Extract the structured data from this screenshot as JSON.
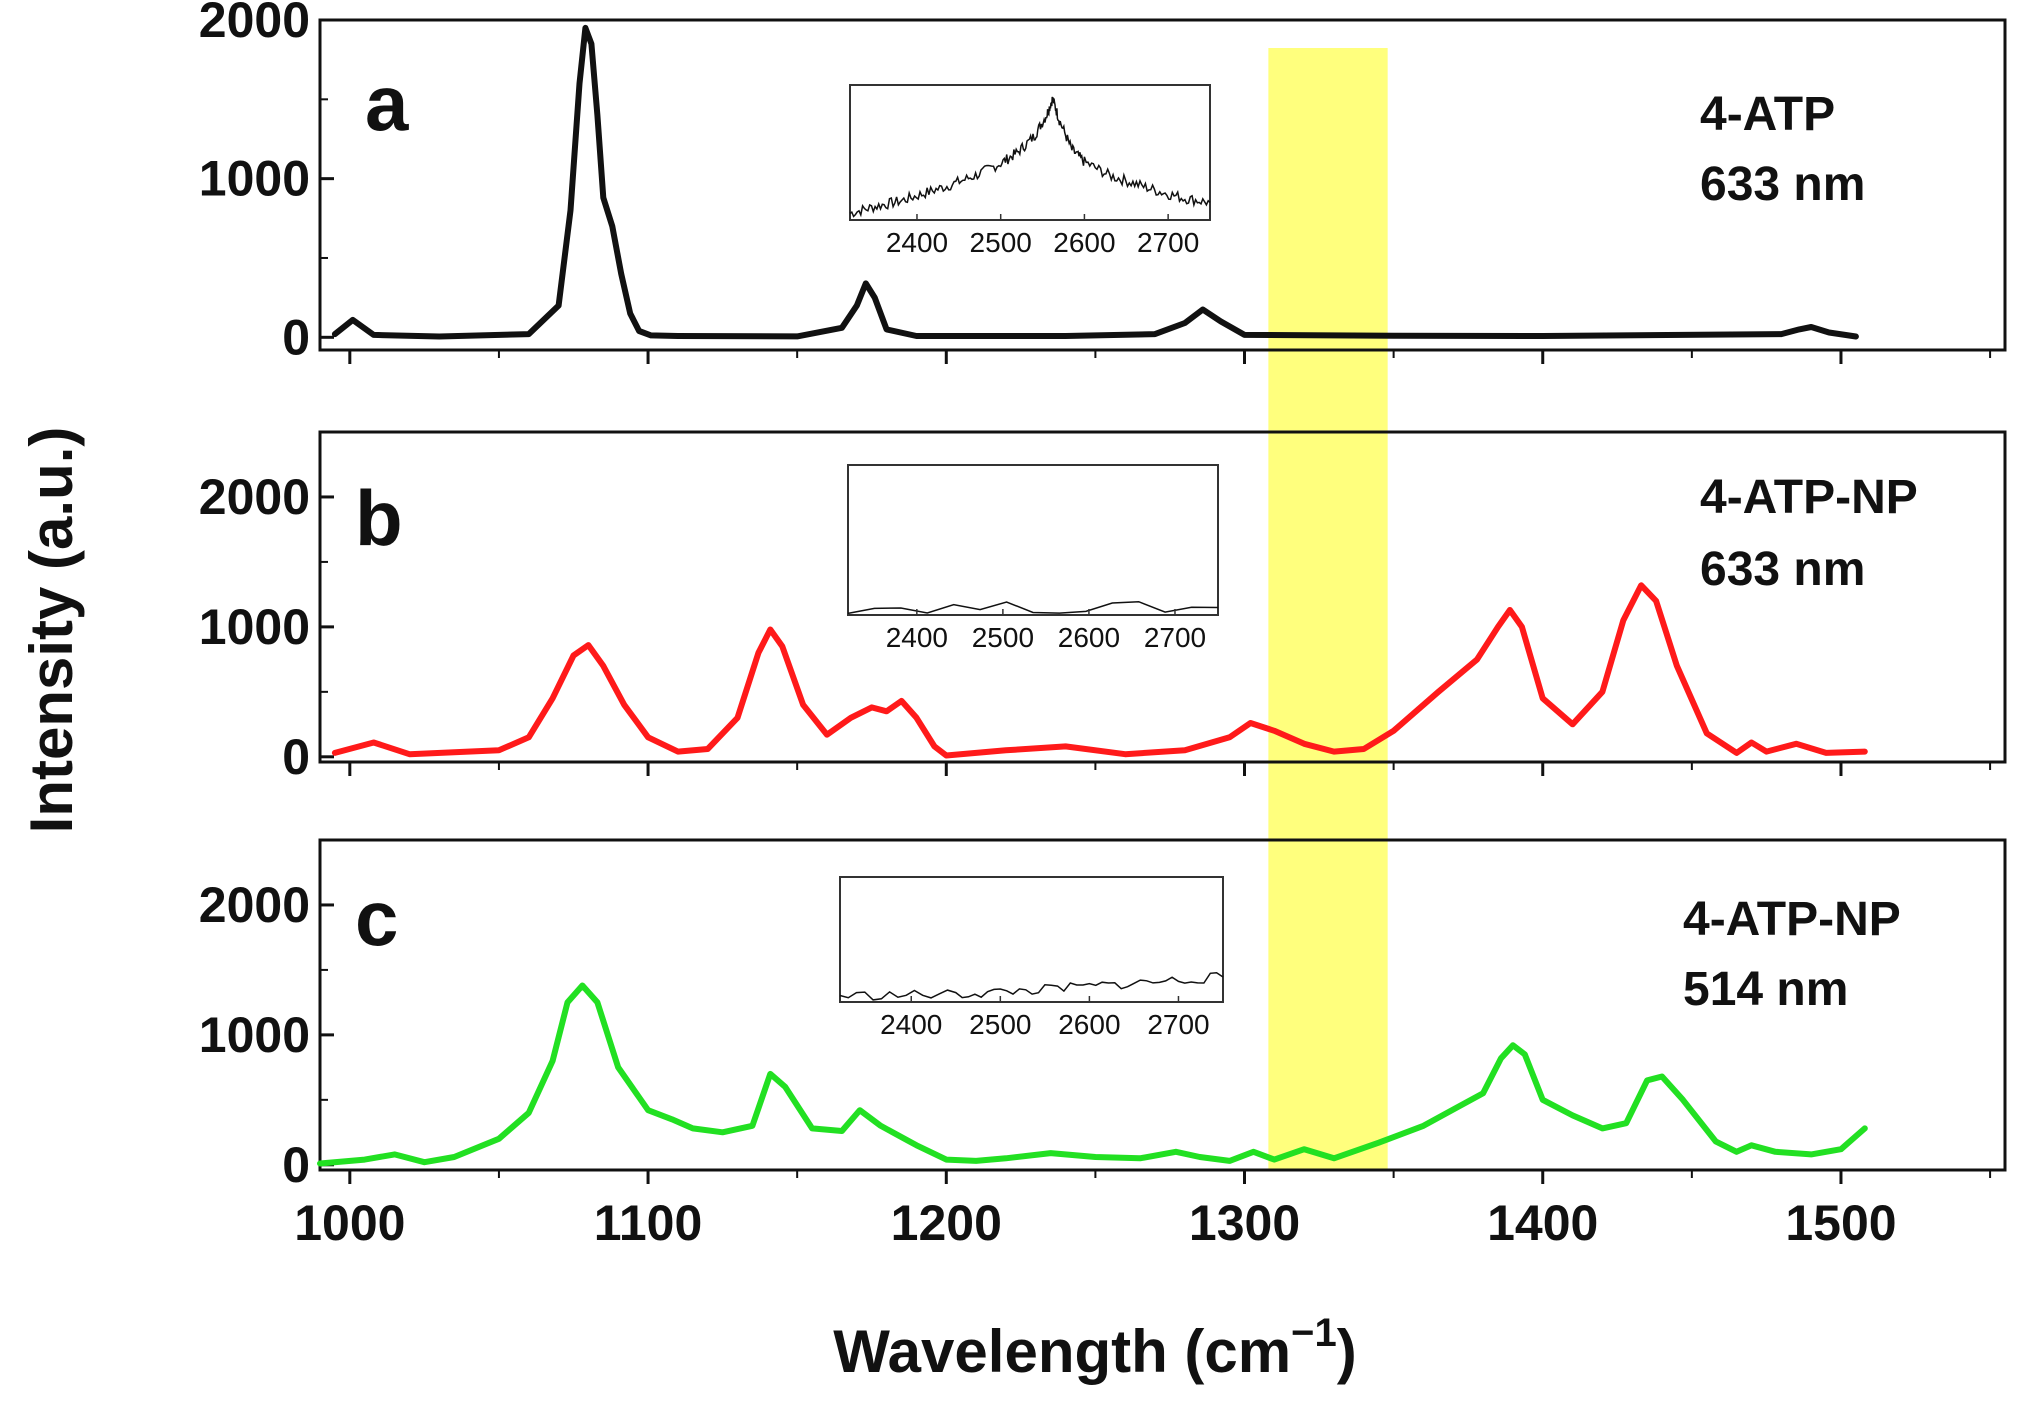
{
  "chart_data": {
    "type": "line",
    "xlabel": "Wavelength (cm",
    "xlabel_sup": "−1",
    "xlabel_close": ")",
    "ylabel": "Intensity (a.u.)",
    "xlim": [
      990,
      1555
    ],
    "xticks": [
      "1000",
      "1100",
      "1200",
      "1300",
      "1400",
      "1500"
    ],
    "highlight_band": {
      "x": [
        1308,
        1348
      ],
      "color": "#ffff66"
    },
    "panels": [
      {
        "letter": "a",
        "label_line1": "4-ATP",
        "label_line2": "633 nm",
        "color": "#111111",
        "ylim": [
          -80,
          2000
        ],
        "yticks": [
          "0",
          "1000",
          "2000"
        ],
        "series": {
          "x": [
            995,
            1001,
            1008,
            1030,
            1060,
            1070,
            1074,
            1077,
            1079,
            1081,
            1083,
            1085,
            1088,
            1091,
            1094,
            1097,
            1101,
            1110,
            1150,
            1165,
            1170,
            1173,
            1176,
            1180,
            1190,
            1240,
            1270,
            1280,
            1286,
            1292,
            1300,
            1350,
            1400,
            1480,
            1486,
            1490,
            1496,
            1505
          ],
          "y": [
            20,
            110,
            15,
            5,
            20,
            200,
            800,
            1600,
            1950,
            1850,
            1400,
            880,
            700,
            400,
            150,
            40,
            12,
            8,
            6,
            60,
            200,
            340,
            250,
            50,
            8,
            8,
            20,
            90,
            175,
            100,
            15,
            10,
            8,
            20,
            50,
            65,
            30,
            5
          ]
        },
        "inset": {
          "xticks": [
            "2400",
            "2500",
            "2600",
            "2700"
          ],
          "xlim": [
            2320,
            2750
          ],
          "ylim": [
            0,
            1
          ],
          "x": [
            2320,
            2350,
            2380,
            2410,
            2440,
            2470,
            2500,
            2520,
            2540,
            2555,
            2562,
            2570,
            2585,
            2600,
            2630,
            2660,
            2690,
            2720,
            2750
          ],
          "y": [
            0.05,
            0.1,
            0.14,
            0.2,
            0.26,
            0.33,
            0.42,
            0.5,
            0.62,
            0.78,
            0.9,
            0.74,
            0.52,
            0.43,
            0.33,
            0.27,
            0.21,
            0.16,
            0.13
          ]
        }
      },
      {
        "letter": "b",
        "label_line1": "4-ATP-NP",
        "label_line2": "633 nm",
        "color": "#ff1a1a",
        "ylim": [
          -40,
          2500
        ],
        "yticks": [
          "0",
          "1000",
          "2000"
        ],
        "series": {
          "x": [
            995,
            1008,
            1020,
            1050,
            1060,
            1068,
            1075,
            1080,
            1085,
            1092,
            1100,
            1110,
            1120,
            1130,
            1137,
            1141,
            1145,
            1152,
            1160,
            1168,
            1175,
            1180,
            1185,
            1190,
            1196,
            1200,
            1220,
            1240,
            1260,
            1280,
            1295,
            1302,
            1310,
            1320,
            1330,
            1340,
            1350,
            1365,
            1378,
            1385,
            1389,
            1393,
            1400,
            1410,
            1420,
            1427,
            1433,
            1438,
            1445,
            1455,
            1465,
            1470,
            1475,
            1485,
            1495,
            1508
          ],
          "y": [
            30,
            110,
            20,
            50,
            150,
            450,
            780,
            860,
            700,
            400,
            150,
            40,
            60,
            300,
            800,
            980,
            850,
            400,
            170,
            300,
            380,
            350,
            430,
            300,
            80,
            10,
            50,
            80,
            20,
            50,
            150,
            260,
            200,
            100,
            40,
            60,
            200,
            500,
            750,
            1000,
            1130,
            1000,
            450,
            250,
            500,
            1050,
            1320,
            1200,
            700,
            180,
            30,
            110,
            40,
            100,
            30,
            40
          ]
        },
        "inset": {
          "xticks": [
            "2400",
            "2500",
            "2600",
            "2700"
          ],
          "xlim": [
            2320,
            2750
          ],
          "ylim": [
            0,
            1
          ],
          "x": [
            2320,
            2750
          ],
          "y": [
            0.05,
            0.05
          ]
        }
      },
      {
        "letter": "c",
        "label_line1": "4-ATP-NP",
        "label_line2": "514 nm",
        "color": "#22e022",
        "ylim": [
          -40,
          2500
        ],
        "yticks": [
          "0",
          "1000",
          "2000"
        ],
        "series": {
          "x": [
            990,
            1005,
            1015,
            1025,
            1035,
            1050,
            1060,
            1068,
            1073,
            1078,
            1083,
            1090,
            1100,
            1108,
            1115,
            1125,
            1135,
            1141,
            1146,
            1155,
            1165,
            1171,
            1178,
            1190,
            1200,
            1210,
            1220,
            1235,
            1250,
            1265,
            1277,
            1285,
            1295,
            1303,
            1310,
            1320,
            1330,
            1345,
            1360,
            1372,
            1380,
            1386,
            1390,
            1394,
            1400,
            1410,
            1420,
            1428,
            1435,
            1440,
            1447,
            1458,
            1465,
            1470,
            1478,
            1490,
            1500,
            1508
          ],
          "y": [
            10,
            40,
            80,
            20,
            60,
            200,
            400,
            800,
            1250,
            1380,
            1250,
            750,
            420,
            350,
            280,
            250,
            300,
            700,
            600,
            280,
            260,
            420,
            300,
            150,
            40,
            30,
            50,
            90,
            60,
            50,
            100,
            60,
            30,
            100,
            40,
            120,
            50,
            170,
            300,
            450,
            550,
            820,
            920,
            850,
            500,
            380,
            280,
            320,
            650,
            680,
            500,
            180,
            100,
            150,
            100,
            80,
            120,
            280
          ]
        },
        "inset": {
          "xticks": [
            "2400",
            "2500",
            "2600",
            "2700"
          ],
          "xlim": [
            2320,
            2750
          ],
          "ylim": [
            0,
            1
          ],
          "x": [
            2320,
            2450,
            2550,
            2650,
            2750
          ],
          "y": [
            0.05,
            0.06,
            0.1,
            0.15,
            0.2
          ]
        }
      }
    ]
  }
}
